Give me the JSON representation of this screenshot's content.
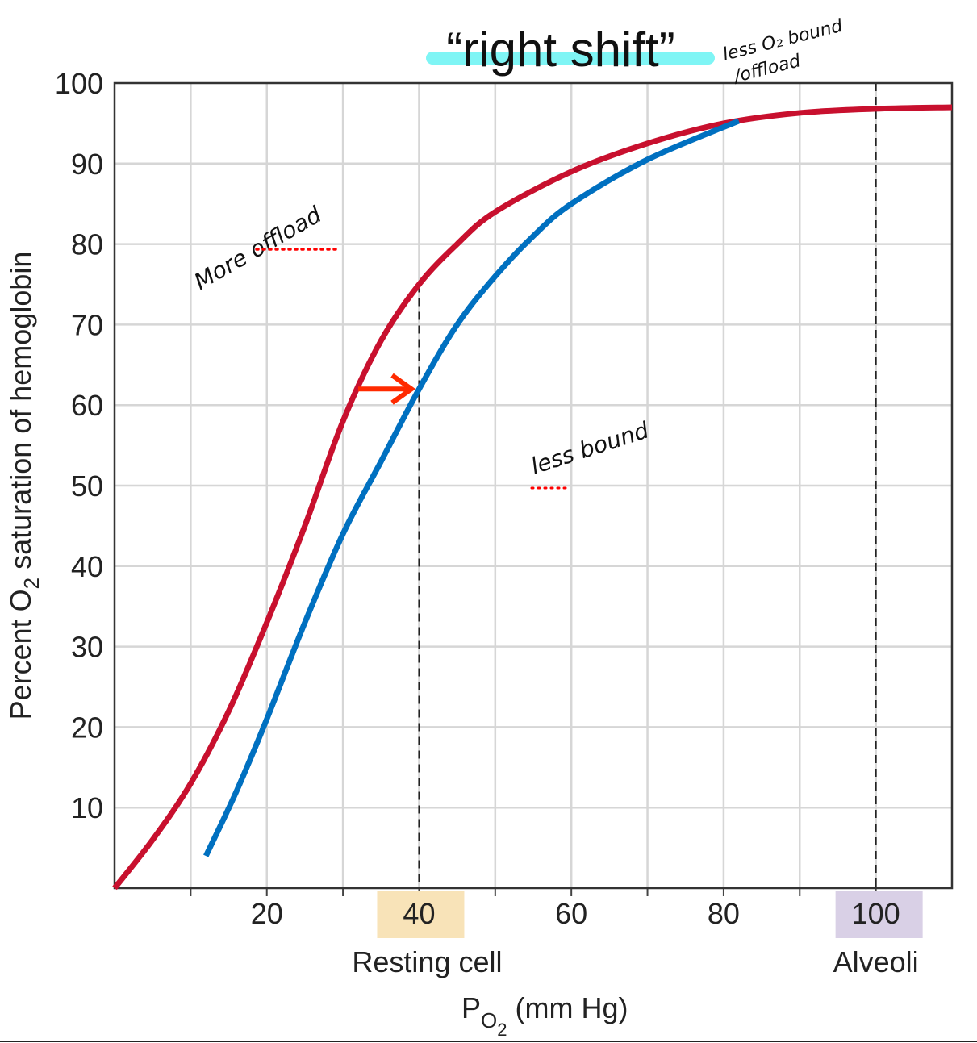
{
  "chart_data": {
    "type": "line",
    "title": "“right shift”",
    "xlabel": "PO2 (mm Hg)",
    "xlabel_main": "P",
    "xlabel_sub": "O",
    "xlabel_sub2": "2",
    "xlabel_rest": " (mm Hg)",
    "ylabel_pre": "Percent O",
    "ylabel_sub": "2",
    "ylabel_post": " saturation of hemoglobin",
    "xlim": [
      0,
      110
    ],
    "ylim": [
      0,
      100
    ],
    "grid": true,
    "x_ticks": [
      20,
      40,
      60,
      80,
      100
    ],
    "y_ticks": [
      10,
      20,
      30,
      40,
      50,
      60,
      70,
      80,
      90,
      100
    ],
    "highlighted_ticks": [
      {
        "value": 40,
        "label": "40",
        "caption": "Resting cell",
        "color": "#f8e3b8"
      },
      {
        "value": 100,
        "label": "100",
        "caption": "Alveoli",
        "color": "#d9d0e6"
      }
    ],
    "dashed_reference_x": [
      40,
      100
    ],
    "series": [
      {
        "color": "#c8102e",
        "x": [
          0,
          5,
          10,
          15,
          20,
          25,
          30,
          35,
          40,
          45,
          50,
          60,
          70,
          80,
          90,
          100,
          110
        ],
        "y": [
          0,
          6,
          13,
          22,
          33,
          45,
          58,
          68,
          75,
          80,
          84,
          89,
          92.5,
          95,
          96.3,
          96.8,
          97
        ]
      },
      {
        "color": "#0070c0",
        "x": [
          12,
          16,
          20,
          25,
          30,
          35,
          40,
          45,
          50,
          55,
          60,
          70,
          82
        ],
        "y": [
          4,
          12,
          21,
          33,
          44,
          53,
          62,
          70,
          76,
          81,
          85,
          90.5,
          95.3
        ]
      }
    ],
    "annotations": {
      "shift_arrow": {
        "from_x": 32,
        "to_x": 39,
        "y": 62,
        "color": "#ff2a00"
      },
      "title_highlight_color": "#7ff5f5",
      "note_top_line1": "less O₂ bound",
      "note_top_line2": "/offload",
      "note_left": "More offload",
      "note_mid": "less bound",
      "dotted_color": "#ff0000"
    }
  }
}
